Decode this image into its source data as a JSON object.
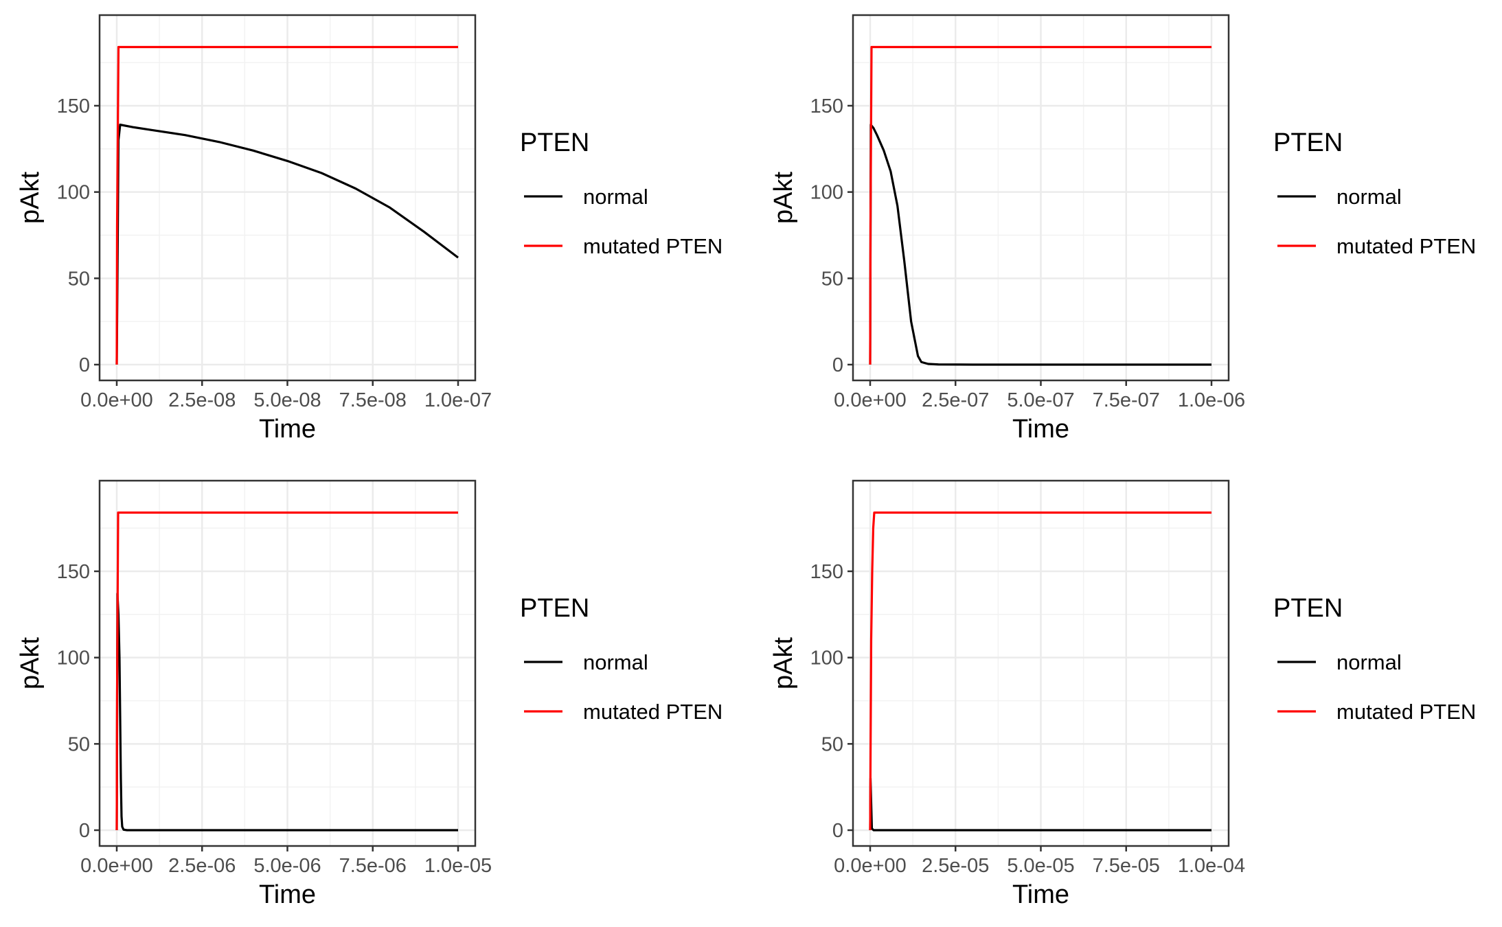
{
  "chart_data": [
    {
      "type": "line",
      "panel": "top-left",
      "xlabel": "Time",
      "ylabel": "pAkt",
      "xlim": [
        0,
        1e-07
      ],
      "ylim": [
        0,
        185
      ],
      "xticks": [
        0,
        2.5e-08,
        5e-08,
        7.5e-08,
        1e-07
      ],
      "xtick_labels": [
        "0.0e+00",
        "2.5e-08",
        "5.0e-08",
        "7.5e-08",
        "1.0e-07"
      ],
      "yticks": [
        0,
        50,
        100,
        150
      ],
      "ytick_labels": [
        "0",
        "50",
        "100",
        "150"
      ],
      "grid": true,
      "legend": {
        "title": "PTEN",
        "placement": "right",
        "entries": [
          "normal",
          "mutated PTEN"
        ]
      },
      "series": [
        {
          "name": "normal",
          "color": "#000000",
          "x": [
            0,
            2e-10,
            5e-10,
            1e-09,
            5e-09,
            1e-08,
            2e-08,
            3e-08,
            4e-08,
            5e-08,
            6e-08,
            7e-08,
            8e-08,
            9e-08,
            1e-07
          ],
          "y": [
            0,
            50,
            130,
            139,
            137.5,
            136,
            133,
            129,
            124,
            118,
            111,
            102,
            91,
            77,
            62
          ]
        },
        {
          "name": "mutated PTEN",
          "color": "#ff0000",
          "x": [
            0,
            1e-10,
            5e-10,
            1e-07
          ],
          "y": [
            0,
            80,
            184,
            184
          ]
        }
      ]
    },
    {
      "type": "line",
      "panel": "top-right",
      "xlabel": "Time",
      "ylabel": "pAkt",
      "xlim": [
        0,
        1e-06
      ],
      "ylim": [
        0,
        185
      ],
      "xticks": [
        0,
        2.5e-07,
        5e-07,
        7.5e-07,
        1e-06
      ],
      "xtick_labels": [
        "0.0e+00",
        "2.5e-07",
        "5.0e-07",
        "7.5e-07",
        "1.0e-06"
      ],
      "yticks": [
        0,
        50,
        100,
        150
      ],
      "ytick_labels": [
        "0",
        "50",
        "100",
        "150"
      ],
      "grid": true,
      "legend": {
        "title": "PTEN",
        "placement": "right",
        "entries": [
          "normal",
          "mutated PTEN"
        ]
      },
      "series": [
        {
          "name": "normal",
          "color": "#000000",
          "x": [
            0,
            2e-09,
            1e-08,
            2e-08,
            4e-08,
            6e-08,
            8e-08,
            1e-07,
            1.2e-07,
            1.4e-07,
            1.5e-07,
            1.7e-07,
            2e-07,
            3e-07,
            1e-06
          ],
          "y": [
            0,
            139,
            137,
            133,
            124,
            112,
            92,
            60,
            25,
            5,
            1.5,
            0.4,
            0.1,
            0,
            0
          ]
        },
        {
          "name": "mutated PTEN",
          "color": "#ff0000",
          "x": [
            0,
            1e-09,
            4e-09,
            1e-06
          ],
          "y": [
            0,
            80,
            184,
            184
          ]
        }
      ]
    },
    {
      "type": "line",
      "panel": "bottom-left",
      "xlabel": "Time",
      "ylabel": "pAkt",
      "xlim": [
        0,
        1e-05
      ],
      "ylim": [
        0,
        185
      ],
      "xticks": [
        0,
        2.5e-06,
        5e-06,
        7.5e-06,
        1e-05
      ],
      "xtick_labels": [
        "0.0e+00",
        "2.5e-06",
        "5.0e-06",
        "7.5e-06",
        "1.0e-05"
      ],
      "yticks": [
        0,
        50,
        100,
        150
      ],
      "ytick_labels": [
        "0",
        "50",
        "100",
        "150"
      ],
      "grid": true,
      "legend": {
        "title": "PTEN",
        "placement": "right",
        "entries": [
          "normal",
          "mutated PTEN"
        ]
      },
      "series": [
        {
          "name": "normal",
          "color": "#000000",
          "x": [
            0,
            2e-08,
            5e-08,
            8e-08,
            1e-07,
            1.2e-07,
            1.4e-07,
            1.6e-07,
            2e-07,
            3e-07,
            1e-05
          ],
          "y": [
            0,
            137,
            125,
            100,
            65,
            30,
            8,
            2,
            0.3,
            0,
            0
          ]
        },
        {
          "name": "mutated PTEN",
          "color": "#ff0000",
          "x": [
            0,
            1e-08,
            4e-08,
            1e-05
          ],
          "y": [
            0,
            80,
            184,
            184
          ]
        }
      ]
    },
    {
      "type": "line",
      "panel": "bottom-right",
      "xlabel": "Time",
      "ylabel": "pAkt",
      "xlim": [
        0,
        0.0001
      ],
      "ylim": [
        0,
        185
      ],
      "xticks": [
        0,
        2.5e-05,
        5e-05,
        7.5e-05,
        0.0001
      ],
      "xtick_labels": [
        "0.0e+00",
        "2.5e-05",
        "5.0e-05",
        "7.5e-05",
        "1.0e-04"
      ],
      "yticks": [
        0,
        50,
        100,
        150
      ],
      "ytick_labels": [
        "0",
        "50",
        "100",
        "150"
      ],
      "grid": true,
      "legend": {
        "title": "PTEN",
        "placement": "right",
        "entries": [
          "normal",
          "mutated PTEN"
        ]
      },
      "series": [
        {
          "name": "normal",
          "color": "#000000",
          "x": [
            0,
            1e-07,
            5e-07,
            1e-06,
            2e-06,
            0.0001
          ],
          "y": [
            0,
            30,
            1,
            0,
            0,
            0
          ]
        },
        {
          "name": "mutated PTEN",
          "color": "#ff0000",
          "x": [
            0,
            1e-07,
            3e-07,
            6e-07,
            9e-07,
            1.2e-06,
            0.0001
          ],
          "y": [
            0,
            40,
            110,
            150,
            175,
            184,
            184
          ]
        }
      ]
    }
  ]
}
